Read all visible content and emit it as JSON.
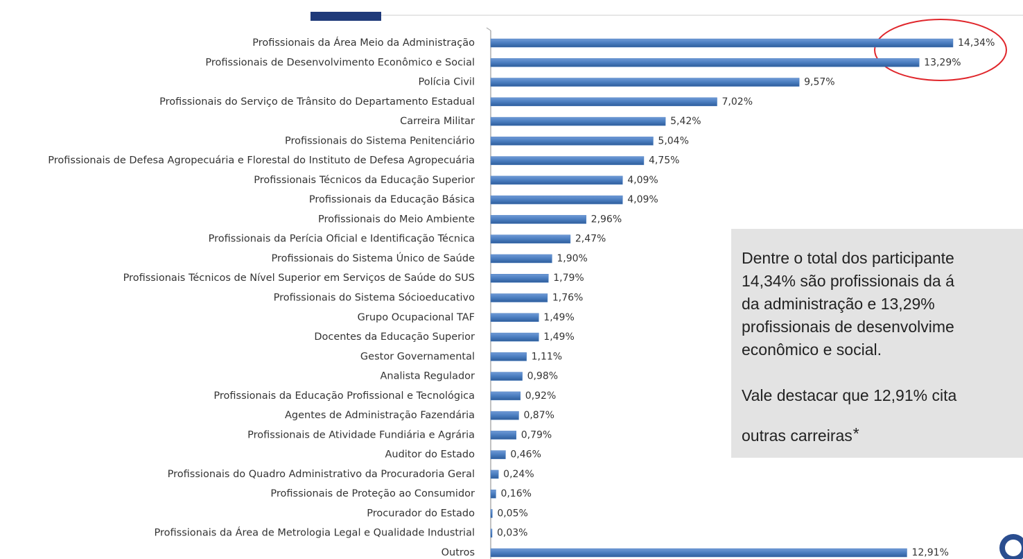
{
  "chart_data": {
    "type": "bar",
    "orientation": "horizontal",
    "color": "#4a7dbf",
    "categories": [
      "Profissionais da Área Meio da Administração",
      "Profissionais de Desenvolvimento Econômico e Social",
      "Polícia Civil",
      "Profissionais do Serviço de Trânsito do Departamento Estadual",
      "Carreira Militar",
      "Profissionais do Sistema Penitenciário",
      "Profissionais de Defesa Agropecuária e Florestal do Instituto de Defesa Agropecuária",
      "Profissionais Técnicos da Educação Superior",
      "Profissionais da Educação Básica",
      "Profissionais do Meio Ambiente",
      "Profissionais da Perícia Oficial e Identificação Técnica",
      "Profissionais do Sistema Único de Saúde",
      "Profissionais Técnicos de Nível Superior em Serviços de Saúde do SUS",
      "Profissionais do Sistema Sócioeducativo",
      "Grupo Ocupacional TAF",
      "Docentes da Educação Superior",
      "Gestor Governamental",
      "Analista Regulador",
      "Profissionais da Educação Profissional e Tecnológica",
      "Agentes de Administração Fazendária",
      "Profissionais de Atividade Fundiária e Agrária",
      "Auditor do Estado",
      "Profissionais do Quadro Administrativo da Procuradoria Geral",
      "Profissionais de Proteção ao Consumidor",
      "Procurador do Estado",
      "Profissionais da Área de Metrologia Legal e Qualidade Industrial",
      "Outros"
    ],
    "values": [
      14.34,
      13.29,
      9.57,
      7.02,
      5.42,
      5.04,
      4.75,
      4.09,
      4.09,
      2.96,
      2.47,
      1.9,
      1.79,
      1.76,
      1.49,
      1.49,
      1.11,
      0.98,
      0.92,
      0.87,
      0.79,
      0.46,
      0.24,
      0.16,
      0.05,
      0.03,
      12.91
    ],
    "value_labels": [
      "14,34%",
      "13,29%",
      "9,57%",
      "7,02%",
      "5,42%",
      "5,04%",
      "4,75%",
      "4,09%",
      "4,09%",
      "2,96%",
      "2,47%",
      "1,90%",
      "1,79%",
      "1,76%",
      "1,49%",
      "1,49%",
      "1,11%",
      "0,98%",
      "0,92%",
      "0,87%",
      "0,79%",
      "0,46%",
      "0,24%",
      "0,16%",
      "0,05%",
      "0,03%",
      "12,91%"
    ],
    "annotation": {
      "paragraph1": [
        "Dentre o total dos participante",
        "14,34% são profissionais da á",
        "da administração e 13,29%",
        "profissionais de desenvolvime",
        "econômico e social."
      ],
      "paragraph2": [
        "Vale destacar que 12,91% cita",
        "outras carreiras"
      ],
      "asterisk": "*"
    }
  }
}
